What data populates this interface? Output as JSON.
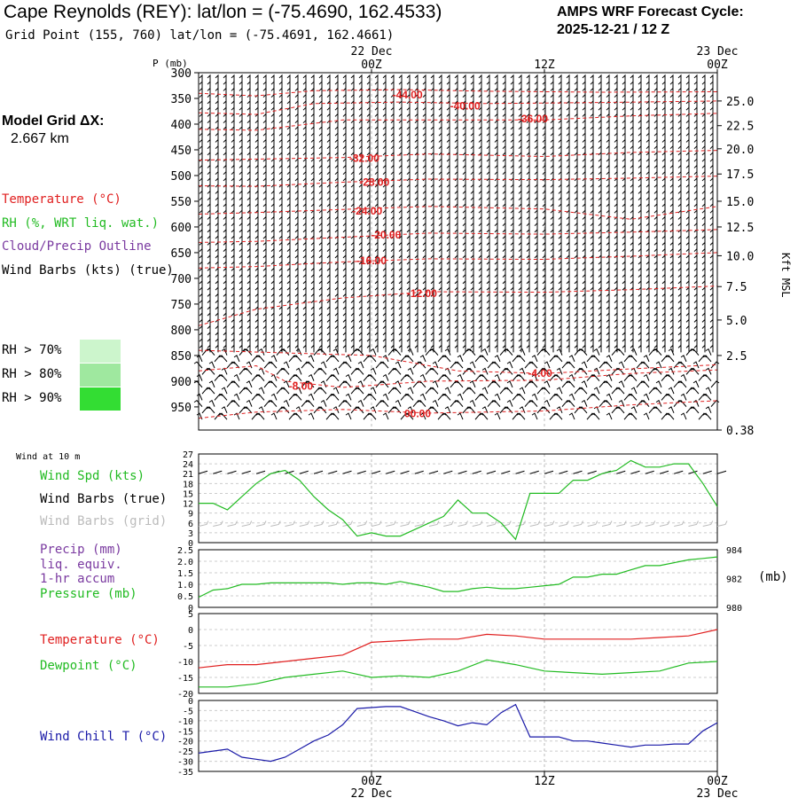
{
  "header": {
    "station": "Cape Reynolds (REY):",
    "latlon_prefix": "lat/lon =",
    "latlon": "(-75.4690, 162.4533)",
    "grid_point": "Grid Point (155, 760) lat/lon = (-75.4691, 162.4661)",
    "cycle_label": "AMPS WRF Forecast Cycle:",
    "cycle_value": "2025-12-21 / 12  Z",
    "grid_dx_label": "Model Grid ΔX:",
    "grid_dx_value": "2.667 km"
  },
  "legend": {
    "temperature": "Temperature (°C)",
    "rh": "RH (%, WRT liq. wat.)",
    "cloud": "Cloud/Precip Outline",
    "wind": "Wind Barbs (kts) (true)",
    "rh70": "RH > 70%",
    "rh80": "RH > 80%",
    "rh90": "RH > 90%"
  },
  "colors": {
    "temperature": "#e02020",
    "rh": "#22bb22",
    "cloud": "#7a3aa0",
    "grid_barbs": "#bbbbbb",
    "wind_chill": "#1a1aa8",
    "rh70": "#ccf5cc",
    "rh80": "#9fe89f",
    "rh90": "#33dd33"
  },
  "chart_data": [
    {
      "type": "line",
      "panel": "upper-air",
      "time_top": {
        "labels": [
          {
            "t": 12,
            "line1": "22 Dec",
            "line2": "00Z"
          },
          {
            "t": 24,
            "line1": "",
            "line2": "12Z"
          },
          {
            "t": 36,
            "line1": "23 Dec",
            "line2": "00Z"
          }
        ]
      },
      "xlim": [
        0,
        36
      ],
      "pressure_label": "P (mb)",
      "pressure_ticks": [
        300,
        350,
        400,
        450,
        500,
        550,
        600,
        650,
        700,
        750,
        800,
        850,
        900,
        950
      ],
      "pressure_bottom": 995,
      "height_label": "Kft MSL",
      "height_ticks": [
        {
          "p": 355,
          "label": "25.0"
        },
        {
          "p": 403,
          "label": "22.5"
        },
        {
          "p": 448,
          "label": "20.0"
        },
        {
          "p": 497,
          "label": "17.5"
        },
        {
          "p": 550,
          "label": "15.0"
        },
        {
          "p": 600,
          "label": "12.5"
        },
        {
          "p": 656,
          "label": "10.0"
        },
        {
          "p": 716,
          "label": "7.5"
        },
        {
          "p": 781,
          "label": "5.0"
        },
        {
          "p": 850,
          "label": "2.5"
        },
        {
          "p": 995,
          "label": "0.38"
        }
      ],
      "isotherms": [
        {
          "label": "-44.00",
          "label_t": 14.5,
          "label_p": 343,
          "points": [
            [
              0,
              340
            ],
            [
              4,
              345
            ],
            [
              8,
              335
            ],
            [
              14,
              333
            ],
            [
              20,
              336
            ],
            [
              28,
              338
            ],
            [
              36,
              337
            ]
          ]
        },
        {
          "label": "-40.00",
          "label_t": 18.5,
          "label_p": 365,
          "points": [
            [
              0,
              378
            ],
            [
              4,
              381
            ],
            [
              8,
              360
            ],
            [
              14,
              357
            ],
            [
              20,
              360
            ],
            [
              28,
              358
            ],
            [
              36,
              355
            ]
          ]
        },
        {
          "label": "-36.00",
          "label_t": 23.2,
          "label_p": 390,
          "points": [
            [
              0,
              410
            ],
            [
              4,
              412
            ],
            [
              10,
              392
            ],
            [
              16,
              392
            ],
            [
              24,
              392
            ],
            [
              30,
              384
            ],
            [
              36,
              379
            ]
          ]
        },
        {
          "label": "-32.00",
          "label_t": 11.5,
          "label_p": 466,
          "points": [
            [
              0,
              470
            ],
            [
              4,
              468
            ],
            [
              10,
              465
            ],
            [
              16,
              458
            ],
            [
              24,
              463
            ],
            [
              30,
              455
            ],
            [
              36,
              451
            ]
          ]
        },
        {
          "label": "-28.00",
          "label_t": 12.2,
          "label_p": 513,
          "points": [
            [
              0,
              520
            ],
            [
              4,
              521
            ],
            [
              10,
              513
            ],
            [
              16,
              507
            ],
            [
              24,
              508
            ],
            [
              30,
              505
            ],
            [
              36,
              501
            ]
          ]
        },
        {
          "label": "-24.00",
          "label_t": 11.7,
          "label_p": 569,
          "points": [
            [
              0,
              575
            ],
            [
              4,
              572
            ],
            [
              10,
              566
            ],
            [
              16,
              560
            ],
            [
              24,
              565
            ],
            [
              30,
              585
            ],
            [
              36,
              560
            ]
          ]
        },
        {
          "label": "-20.00",
          "label_t": 13.0,
          "label_p": 616,
          "points": [
            [
              0,
              630
            ],
            [
              4,
              628
            ],
            [
              10,
              620
            ],
            [
              16,
              612
            ],
            [
              24,
              614
            ],
            [
              30,
              610
            ],
            [
              36,
              605
            ]
          ]
        },
        {
          "label": "-16.00",
          "label_t": 12.0,
          "label_p": 666,
          "points": [
            [
              0,
              680
            ],
            [
              4,
              677
            ],
            [
              10,
              668
            ],
            [
              16,
              662
            ],
            [
              24,
              663
            ],
            [
              30,
              657
            ],
            [
              36,
              650
            ]
          ]
        },
        {
          "label": "-12.00",
          "label_t": 15.5,
          "label_p": 729,
          "points": [
            [
              0,
              792
            ],
            [
              4,
              760
            ],
            [
              10,
              738
            ],
            [
              16,
              726
            ],
            [
              24,
              727
            ],
            [
              30,
              722
            ],
            [
              36,
              715
            ]
          ]
        },
        {
          "label": "-4.00",
          "label_t": 23.7,
          "label_p": 885,
          "points": [
            [
              0,
              840
            ],
            [
              6,
              845
            ],
            [
              12,
              850
            ],
            [
              18,
              880
            ],
            [
              24,
              885
            ],
            [
              30,
              876
            ],
            [
              36,
              868
            ]
          ]
        },
        {
          "label": "-8.00",
          "label_t": 7.1,
          "label_p": 910,
          "points": [
            [
              0,
              880
            ],
            [
              4,
              870
            ],
            [
              6,
              900
            ],
            [
              10,
              912
            ],
            [
              16,
              900
            ],
            [
              24,
              898
            ],
            [
              30,
              885
            ],
            [
              36,
              878
            ]
          ]
        },
        {
          "label": "00.00",
          "label_t": 15.2,
          "label_p": 963,
          "points": [
            [
              0,
              972
            ],
            [
              4,
              960
            ],
            [
              10,
              955
            ],
            [
              16,
              962
            ],
            [
              24,
              958
            ],
            [
              30,
              946
            ],
            [
              36,
              938
            ]
          ]
        }
      ]
    },
    {
      "type": "line",
      "panel": "wind-10m",
      "title_small": "Wind at 10 m",
      "labels": {
        "spd": "Wind Spd (kts)",
        "barbs_true": "Wind Barbs (true)",
        "barbs_grid": "Wind Barbs (grid)"
      },
      "ylim": [
        0,
        27
      ],
      "yticks": [
        0,
        3,
        6,
        9,
        12,
        15,
        18,
        21,
        24,
        27
      ],
      "x": [
        0,
        1,
        2,
        3,
        4,
        5,
        6,
        7,
        8,
        9,
        10,
        11,
        12,
        13,
        14,
        15,
        16,
        17,
        18,
        19,
        20,
        21,
        22,
        23,
        24,
        25,
        26,
        27,
        28,
        29,
        30,
        31,
        32,
        33,
        34,
        35,
        36
      ],
      "series": [
        {
          "values": [
            12,
            12,
            10,
            14,
            18,
            21,
            22,
            19,
            14,
            10,
            7,
            2,
            3,
            2,
            2,
            4,
            6,
            8,
            13,
            9,
            9,
            6,
            1,
            15,
            15,
            15,
            19,
            19,
            21,
            22,
            25,
            23,
            23,
            24,
            24,
            18,
            11
          ]
        }
      ]
    },
    {
      "type": "line",
      "panel": "precip-pressure",
      "labels": {
        "precip": "Precip (mm)",
        "liq": "liq. equiv.",
        "accum": "1-hr accum",
        "pressure": "Pressure (mb)",
        "unit": "(mb)"
      },
      "ylim": [
        0,
        2.5
      ],
      "yticks": [
        0,
        0.5,
        1.0,
        1.5,
        2.0,
        2.5
      ],
      "ytick_labels": [
        "0",
        "0.5",
        "1.0",
        "1.5",
        "2.0",
        "2.5"
      ],
      "pressure_ylim": [
        980,
        984
      ],
      "pressure_ticks": [
        980,
        982,
        984
      ],
      "x": [
        0,
        1,
        2,
        3,
        4,
        5,
        6,
        7,
        8,
        9,
        10,
        11,
        12,
        13,
        14,
        15,
        16,
        17,
        18,
        19,
        20,
        21,
        22,
        23,
        24,
        25,
        26,
        27,
        28,
        29,
        30,
        31,
        32,
        33,
        34,
        35,
        36
      ],
      "series": [
        {
          "values": [
            980.7,
            981.2,
            981.3,
            981.6,
            981.6,
            981.7,
            981.7,
            981.7,
            981.7,
            981.7,
            981.6,
            981.7,
            981.7,
            981.6,
            981.8,
            981.6,
            981.4,
            981.1,
            981.1,
            981.3,
            981.4,
            981.3,
            981.3,
            981.4,
            981.5,
            981.6,
            982.1,
            982.1,
            982.3,
            982.3,
            982.6,
            982.9,
            982.9,
            983.1,
            983.3,
            983.4,
            983.5
          ]
        }
      ]
    },
    {
      "type": "line",
      "panel": "temperature",
      "labels": {
        "temp": "Temperature (°C)",
        "dew": "Dewpoint (°C)"
      },
      "ylim": [
        -20,
        5
      ],
      "yticks": [
        -20,
        -15,
        -10,
        -5,
        0,
        5
      ],
      "x": [
        0,
        2,
        4,
        6,
        8,
        10,
        12,
        14,
        16,
        18,
        20,
        22,
        24,
        26,
        28,
        30,
        32,
        34,
        36
      ],
      "series": [
        {
          "name": "Temperature (°C)",
          "values": [
            -12,
            -11,
            -11,
            -10,
            -9,
            -8,
            -4,
            -3.5,
            -3,
            -3,
            -1.5,
            -2,
            -3,
            -3,
            -3,
            -3,
            -2.5,
            -2,
            0
          ]
        },
        {
          "name": "Dewpoint (°C)",
          "values": [
            -18,
            -18,
            -17,
            -15,
            -14,
            -13,
            -15,
            -14.5,
            -15,
            -13,
            -9.5,
            -11,
            -13,
            -13.5,
            -14,
            -13.5,
            -13,
            -10.5,
            -10
          ]
        }
      ]
    },
    {
      "type": "line",
      "panel": "wind-chill",
      "labels": {
        "chill": "Wind Chill T (°C)"
      },
      "ylim": [
        -35,
        0
      ],
      "yticks": [
        -35,
        -30,
        -25,
        -20,
        -15,
        -10,
        -5,
        0
      ],
      "x": [
        0,
        1,
        2,
        3,
        4,
        5,
        6,
        7,
        8,
        9,
        10,
        11,
        12,
        13,
        14,
        15,
        16,
        17,
        18,
        19,
        20,
        21,
        22,
        23,
        24,
        25,
        26,
        27,
        28,
        29,
        30,
        31,
        32,
        33,
        34,
        35,
        36
      ],
      "series": [
        {
          "values": [
            -26,
            -25,
            -24,
            -28,
            -29,
            -30,
            -28,
            -24,
            -20,
            -17,
            -12,
            -4,
            -3.5,
            -3,
            -3,
            -5.5,
            -8,
            -10,
            -12.5,
            -11,
            -12,
            -6,
            -2,
            -18,
            -18,
            -18,
            -20,
            -20,
            -21,
            -22,
            -23,
            -22,
            -22,
            -21.5,
            -21.5,
            -15,
            -11
          ]
        }
      ],
      "time_bottom": {
        "labels": [
          {
            "t": 12,
            "line1": "00Z",
            "line2": "22 Dec"
          },
          {
            "t": 24,
            "line1": "12Z",
            "line2": ""
          },
          {
            "t": 36,
            "line1": "00Z",
            "line2": "23 Dec"
          }
        ]
      }
    }
  ]
}
